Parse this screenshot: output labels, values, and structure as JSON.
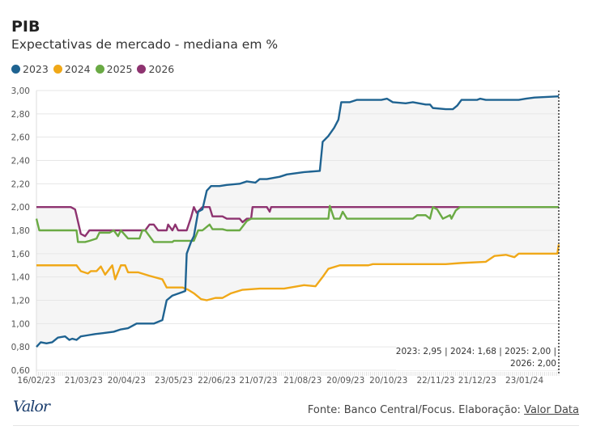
{
  "chart_data": {
    "type": "line",
    "title": "PIB",
    "subtitle": "Expectativas de mercado - mediana em %",
    "xlabel": "",
    "ylabel": "",
    "x_unit": "days since 16/02/23",
    "xlim": [
      0,
      365
    ],
    "ylim": [
      0.6,
      3.0
    ],
    "yticks": [
      "3,00",
      "2,80",
      "2,60",
      "2,40",
      "2,20",
      "2,00",
      "1,80",
      "1,60",
      "1,40",
      "1,20",
      "1,00",
      "0,80",
      "0,60"
    ],
    "ytick_values": [
      3.0,
      2.8,
      2.6,
      2.4,
      2.2,
      2.0,
      1.8,
      1.6,
      1.4,
      1.2,
      1.0,
      0.8,
      0.6
    ],
    "xticks": [
      {
        "label": "16/02/23",
        "day": 0
      },
      {
        "label": "21/03/23",
        "day": 33
      },
      {
        "label": "20/04/23",
        "day": 63
      },
      {
        "label": "23/05/23",
        "day": 96
      },
      {
        "label": "22/06/23",
        "day": 126
      },
      {
        "label": "21/07/23",
        "day": 155
      },
      {
        "label": "21/08/23",
        "day": 186
      },
      {
        "label": "20/09/23",
        "day": 216
      },
      {
        "label": "20/10/23",
        "day": 246
      },
      {
        "label": "22/11/23",
        "day": 279
      },
      {
        "label": "21/12/23",
        "day": 308
      },
      {
        "label": "23/01/24",
        "day": 341
      }
    ],
    "grid": true,
    "legend_position": "top-left",
    "series": [
      {
        "name": "2023",
        "color": "#1f6391",
        "points": [
          [
            0,
            0.8
          ],
          [
            3,
            0.84
          ],
          [
            7,
            0.83
          ],
          [
            11,
            0.84
          ],
          [
            15,
            0.88
          ],
          [
            20,
            0.89
          ],
          [
            23,
            0.86
          ],
          [
            25,
            0.87
          ],
          [
            28,
            0.86
          ],
          [
            31,
            0.89
          ],
          [
            36,
            0.9
          ],
          [
            41,
            0.91
          ],
          [
            48,
            0.92
          ],
          [
            54,
            0.93
          ],
          [
            59,
            0.95
          ],
          [
            64,
            0.96
          ],
          [
            70,
            1.0
          ],
          [
            82,
            1.0
          ],
          [
            88,
            1.03
          ],
          [
            91,
            1.2
          ],
          [
            95,
            1.24
          ],
          [
            102,
            1.27
          ],
          [
            104,
            1.28
          ],
          [
            105,
            1.6
          ],
          [
            108,
            1.7
          ],
          [
            110,
            1.75
          ],
          [
            113,
            1.96
          ],
          [
            116,
            1.98
          ],
          [
            119,
            2.14
          ],
          [
            122,
            2.18
          ],
          [
            128,
            2.18
          ],
          [
            133,
            2.19
          ],
          [
            142,
            2.2
          ],
          [
            147,
            2.22
          ],
          [
            153,
            2.21
          ],
          [
            156,
            2.24
          ],
          [
            161,
            2.24
          ],
          [
            170,
            2.26
          ],
          [
            175,
            2.28
          ],
          [
            187,
            2.3
          ],
          [
            198,
            2.31
          ],
          [
            200,
            2.56
          ],
          [
            204,
            2.61
          ],
          [
            208,
            2.68
          ],
          [
            211,
            2.75
          ],
          [
            213,
            2.9
          ],
          [
            219,
            2.9
          ],
          [
            224,
            2.92
          ],
          [
            241,
            2.92
          ],
          [
            245,
            2.93
          ],
          [
            249,
            2.9
          ],
          [
            258,
            2.89
          ],
          [
            263,
            2.9
          ],
          [
            272,
            2.88
          ],
          [
            275,
            2.88
          ],
          [
            277,
            2.85
          ],
          [
            286,
            2.84
          ],
          [
            291,
            2.84
          ],
          [
            294,
            2.87
          ],
          [
            297,
            2.92
          ],
          [
            308,
            2.92
          ],
          [
            310,
            2.93
          ],
          [
            314,
            2.92
          ],
          [
            337,
            2.92
          ],
          [
            342,
            2.93
          ],
          [
            348,
            2.94
          ],
          [
            365,
            2.95
          ]
        ]
      },
      {
        "name": "2024",
        "color": "#f0a818",
        "points": [
          [
            0,
            1.5
          ],
          [
            28,
            1.5
          ],
          [
            31,
            1.45
          ],
          [
            36,
            1.43
          ],
          [
            38,
            1.45
          ],
          [
            42,
            1.45
          ],
          [
            45,
            1.49
          ],
          [
            48,
            1.42
          ],
          [
            53,
            1.5
          ],
          [
            55,
            1.38
          ],
          [
            59,
            1.5
          ],
          [
            62,
            1.5
          ],
          [
            64,
            1.44
          ],
          [
            71,
            1.44
          ],
          [
            79,
            1.41
          ],
          [
            88,
            1.38
          ],
          [
            91,
            1.31
          ],
          [
            102,
            1.31
          ],
          [
            106,
            1.29
          ],
          [
            110,
            1.26
          ],
          [
            115,
            1.21
          ],
          [
            119,
            1.2
          ],
          [
            125,
            1.22
          ],
          [
            130,
            1.22
          ],
          [
            136,
            1.26
          ],
          [
            144,
            1.29
          ],
          [
            156,
            1.3
          ],
          [
            173,
            1.3
          ],
          [
            187,
            1.33
          ],
          [
            195,
            1.32
          ],
          [
            200,
            1.4
          ],
          [
            204,
            1.47
          ],
          [
            212,
            1.5
          ],
          [
            232,
            1.5
          ],
          [
            235,
            1.51
          ],
          [
            286,
            1.51
          ],
          [
            297,
            1.52
          ],
          [
            314,
            1.53
          ],
          [
            320,
            1.58
          ],
          [
            328,
            1.59
          ],
          [
            334,
            1.57
          ],
          [
            337,
            1.6
          ],
          [
            364,
            1.6
          ],
          [
            365,
            1.68
          ]
        ]
      },
      {
        "name": "2025",
        "color": "#6aaa44",
        "points": [
          [
            0,
            1.9
          ],
          [
            2,
            1.8
          ],
          [
            28,
            1.8
          ],
          [
            29,
            1.7
          ],
          [
            34,
            1.7
          ],
          [
            37,
            1.71
          ],
          [
            42,
            1.73
          ],
          [
            44,
            1.78
          ],
          [
            51,
            1.78
          ],
          [
            54,
            1.8
          ],
          [
            57,
            1.75
          ],
          [
            59,
            1.8
          ],
          [
            64,
            1.73
          ],
          [
            72,
            1.73
          ],
          [
            74,
            1.8
          ],
          [
            76,
            1.8
          ],
          [
            82,
            1.7
          ],
          [
            95,
            1.7
          ],
          [
            96,
            1.71
          ],
          [
            110,
            1.71
          ],
          [
            113,
            1.8
          ],
          [
            116,
            1.8
          ],
          [
            121,
            1.85
          ],
          [
            123,
            1.81
          ],
          [
            130,
            1.81
          ],
          [
            133,
            1.8
          ],
          [
            142,
            1.8
          ],
          [
            147,
            1.88
          ],
          [
            150,
            1.9
          ],
          [
            204,
            1.9
          ],
          [
            205,
            2.01
          ],
          [
            208,
            1.9
          ],
          [
            212,
            1.9
          ],
          [
            214,
            1.96
          ],
          [
            217,
            1.9
          ],
          [
            263,
            1.9
          ],
          [
            266,
            1.93
          ],
          [
            272,
            1.93
          ],
          [
            275,
            1.9
          ],
          [
            277,
            2.0
          ],
          [
            280,
            1.98
          ],
          [
            284,
            1.9
          ],
          [
            289,
            1.93
          ],
          [
            290,
            1.9
          ],
          [
            293,
            1.97
          ],
          [
            296,
            2.0
          ],
          [
            365,
            2.0
          ]
        ]
      },
      {
        "name": "2026",
        "color": "#8e3370",
        "points": [
          [
            0,
            2.0
          ],
          [
            24,
            2.0
          ],
          [
            27,
            1.98
          ],
          [
            28,
            1.93
          ],
          [
            31,
            1.77
          ],
          [
            34,
            1.75
          ],
          [
            37,
            1.8
          ],
          [
            76,
            1.8
          ],
          [
            79,
            1.85
          ],
          [
            82,
            1.85
          ],
          [
            85,
            1.8
          ],
          [
            91,
            1.8
          ],
          [
            92,
            1.85
          ],
          [
            95,
            1.8
          ],
          [
            97,
            1.85
          ],
          [
            99,
            1.8
          ],
          [
            105,
            1.8
          ],
          [
            108,
            1.91
          ],
          [
            110,
            2.0
          ],
          [
            112,
            1.95
          ],
          [
            116,
            2.0
          ],
          [
            121,
            2.0
          ],
          [
            123,
            1.92
          ],
          [
            130,
            1.92
          ],
          [
            133,
            1.9
          ],
          [
            142,
            1.9
          ],
          [
            144,
            1.87
          ],
          [
            147,
            1.9
          ],
          [
            150,
            1.9
          ],
          [
            151,
            2.0
          ],
          [
            161,
            2.0
          ],
          [
            163,
            1.96
          ],
          [
            164,
            2.0
          ],
          [
            365,
            2.0
          ]
        ]
      }
    ],
    "annotation": {
      "line1": "2023: 2,95 | 2024: 1,68 | 2025: 2,00 |",
      "line2": "2026: 2,00"
    }
  },
  "footer": {
    "logo": "Valor",
    "source_prefix": "Fonte: Banco Central/Focus. Elaboração: ",
    "source_link": "Valor Data"
  },
  "colors": {
    "band": "#f5f5f5",
    "grid": "#e6e6e6"
  }
}
